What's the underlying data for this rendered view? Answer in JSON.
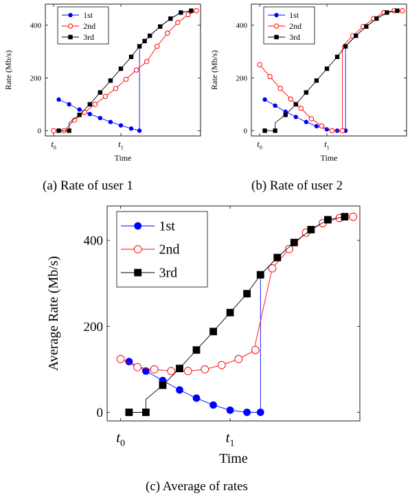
{
  "captions": {
    "a": "(a) Rate of user 1",
    "b": "(b) Rate of user 2",
    "c": "(c) Average of rates"
  },
  "chart_data": [
    {
      "id": "a",
      "type": "line",
      "xlabel": "Time",
      "ylabel": "Rate (Mb/s)",
      "xticks": [
        {
          "x": 0,
          "label": "t",
          "sub": "0"
        },
        {
          "x": 6.5,
          "label": "t",
          "sub": "1"
        }
      ],
      "xlim": [
        -0.8,
        14.2
      ],
      "ylim": [
        -20,
        480
      ],
      "yticks": [
        0,
        200,
        400
      ],
      "legend": "top-left",
      "series": [
        {
          "name": "1st",
          "color": "#0000ff",
          "marker": "circle",
          "x": [
            0.5,
            1.5,
            2.5,
            3.5,
            4.5,
            5.5,
            6.5,
            7.5,
            8.3,
            8.3,
            9.3,
            10.3,
            11.3,
            12.3,
            13.3
          ],
          "y": [
            118,
            100,
            80,
            63,
            48,
            33,
            20,
            8,
            0,
            320,
            360,
            395,
            425,
            448,
            455
          ],
          "marked": [
            0,
            1,
            2,
            3,
            4,
            5,
            6,
            7,
            8
          ]
        },
        {
          "name": "2nd",
          "color": "#ff0000",
          "marker": "open-circle",
          "x": [
            0,
            1,
            2,
            3,
            4,
            5,
            6,
            7,
            8,
            9,
            10,
            11,
            12,
            13,
            13.8
          ],
          "y": [
            0,
            0,
            40,
            70,
            100,
            130,
            160,
            195,
            230,
            262,
            320,
            370,
            410,
            440,
            455
          ],
          "marked": [
            0,
            1,
            2,
            3,
            4,
            5,
            6,
            7,
            8,
            9,
            10,
            11,
            12,
            13,
            14
          ]
        },
        {
          "name": "3rd",
          "color": "#000000",
          "marker": "square",
          "x": [
            0.5,
            1.5,
            1.5,
            2.5,
            3.5,
            4.5,
            5.5,
            6.5,
            7.5,
            8.3,
            8.8,
            9.3,
            10.3,
            11.3,
            12.3,
            13.3
          ],
          "y": [
            0,
            0,
            30,
            60,
            100,
            145,
            190,
            235,
            280,
            320,
            340,
            360,
            395,
            425,
            448,
            455
          ],
          "marked": [
            0,
            1,
            3,
            4,
            5,
            6,
            7,
            8,
            9,
            10,
            11,
            12,
            13,
            14,
            15
          ]
        }
      ]
    },
    {
      "id": "b",
      "type": "line",
      "xlabel": "Time",
      "ylabel": "Rate (Mb/s)",
      "xticks": [
        {
          "x": 0,
          "label": "t",
          "sub": "0"
        },
        {
          "x": 6.5,
          "label": "t",
          "sub": "1"
        }
      ],
      "xlim": [
        -0.8,
        14.2
      ],
      "ylim": [
        -20,
        480
      ],
      "yticks": [
        0,
        200,
        400
      ],
      "legend": "top-left",
      "series": [
        {
          "name": "1st",
          "color": "#0000ff",
          "marker": "circle",
          "x": [
            0.5,
            1.5,
            2.5,
            3.5,
            4.5,
            5.5,
            6.5,
            7.5,
            8.3,
            8.3,
            9.3,
            10.3,
            11.3,
            12.3,
            13.3
          ],
          "y": [
            118,
            95,
            72,
            52,
            33,
            17,
            5,
            0,
            0,
            320,
            360,
            395,
            425,
            448,
            455
          ],
          "marked": [
            0,
            1,
            2,
            3,
            4,
            5,
            6,
            7,
            8
          ]
        },
        {
          "name": "2nd",
          "color": "#ff0000",
          "marker": "open-circle",
          "x": [
            0,
            1,
            2,
            3,
            4,
            5,
            6,
            7,
            8,
            8,
            9,
            10,
            11,
            12,
            13,
            13.8
          ],
          "y": [
            250,
            205,
            160,
            120,
            85,
            45,
            18,
            0,
            0,
            320,
            360,
            395,
            425,
            448,
            455,
            455
          ],
          "marked": [
            0,
            1,
            2,
            3,
            4,
            5,
            6,
            7,
            8,
            10,
            11,
            12,
            13,
            14,
            15
          ]
        },
        {
          "name": "3rd",
          "color": "#000000",
          "marker": "square",
          "x": [
            0.5,
            1.5,
            1.5,
            2.5,
            3.5,
            4.5,
            5.5,
            6.5,
            7.5,
            8.3,
            9.3,
            10.3,
            11.3,
            12.3,
            13.3
          ],
          "y": [
            0,
            0,
            30,
            60,
            100,
            145,
            190,
            235,
            280,
            320,
            360,
            395,
            425,
            448,
            455
          ],
          "marked": [
            0,
            1,
            3,
            4,
            5,
            6,
            7,
            8,
            9,
            10,
            11,
            12,
            13,
            14
          ]
        }
      ]
    },
    {
      "id": "c",
      "type": "line",
      "xlabel": "Time",
      "ylabel": "Average Rate (Mb/s)",
      "xticks": [
        {
          "x": 0,
          "label": "t",
          "sub": "0"
        },
        {
          "x": 6.5,
          "label": "t",
          "sub": "1"
        }
      ],
      "xlim": [
        -0.8,
        14.2
      ],
      "ylim": [
        -20,
        480
      ],
      "yticks": [
        0,
        200,
        400
      ],
      "legend": "top-left",
      "series": [
        {
          "name": "1st",
          "color": "#0000ff",
          "marker": "circle",
          "x": [
            0.5,
            1.5,
            2.5,
            3.5,
            4.5,
            5.5,
            6.5,
            7.5,
            8.3,
            8.3,
            9.3,
            10.3,
            11.3,
            12.3,
            13.3
          ],
          "y": [
            118,
            96,
            74,
            52,
            33,
            17,
            5,
            0,
            0,
            320,
            360,
            395,
            425,
            448,
            455
          ],
          "marked": [
            0,
            1,
            2,
            3,
            4,
            5,
            6,
            7,
            8
          ]
        },
        {
          "name": "2nd",
          "color": "#ff0000",
          "marker": "open-circle",
          "x": [
            0,
            1,
            2,
            3,
            4,
            5,
            6,
            7,
            8,
            8,
            9,
            10,
            11,
            12,
            13,
            13.8
          ],
          "y": [
            124,
            105,
            100,
            96,
            96,
            100,
            110,
            124,
            145,
            160,
            335,
            380,
            418,
            440,
            452,
            455
          ],
          "marked": [
            0,
            1,
            2,
            3,
            4,
            5,
            6,
            7,
            8,
            10,
            11,
            12,
            13,
            14,
            15
          ]
        },
        {
          "name": "3rd",
          "color": "#000000",
          "marker": "square",
          "x": [
            0.5,
            1.5,
            1.5,
            2.5,
            3.5,
            4.5,
            5.5,
            6.5,
            7.5,
            8.3,
            9.3,
            10.3,
            11.3,
            12.3,
            13.3
          ],
          "y": [
            0,
            0,
            30,
            63,
            102,
            145,
            188,
            232,
            276,
            320,
            360,
            395,
            425,
            448,
            455
          ],
          "marked": [
            0,
            1,
            3,
            4,
            5,
            6,
            7,
            8,
            9,
            10,
            11,
            12,
            13,
            14
          ]
        }
      ]
    }
  ]
}
